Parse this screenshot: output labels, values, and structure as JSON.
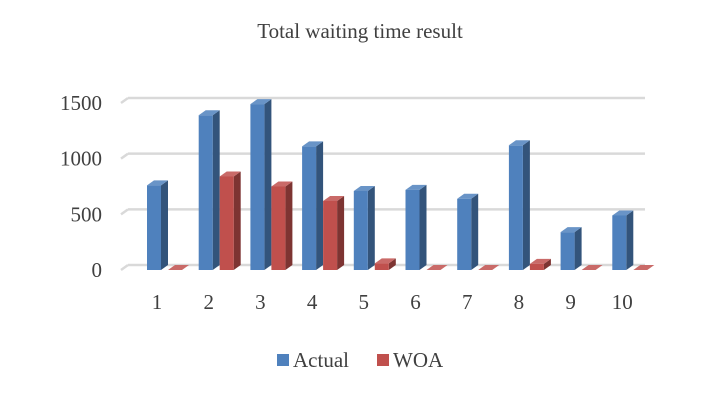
{
  "chart_data": {
    "type": "bar",
    "title": "Total waiting time result",
    "categories": [
      "1",
      "2",
      "3",
      "4",
      "5",
      "6",
      "7",
      "8",
      "9",
      "10"
    ],
    "series": [
      {
        "name": "Actual",
        "values": [
          760,
          1390,
          1490,
          1110,
          710,
          720,
          640,
          1120,
          340,
          490
        ],
        "color": "#4f81bd"
      },
      {
        "name": "WOA",
        "values": [
          0,
          840,
          750,
          620,
          60,
          0,
          0,
          55,
          0,
          0
        ],
        "color": "#c0504d"
      }
    ],
    "ylim": [
      0,
      1500
    ],
    "yticks": [
      "0",
      "500",
      "1000",
      "1500"
    ],
    "grid": true,
    "legend": "bottom",
    "style": "3d-column"
  }
}
